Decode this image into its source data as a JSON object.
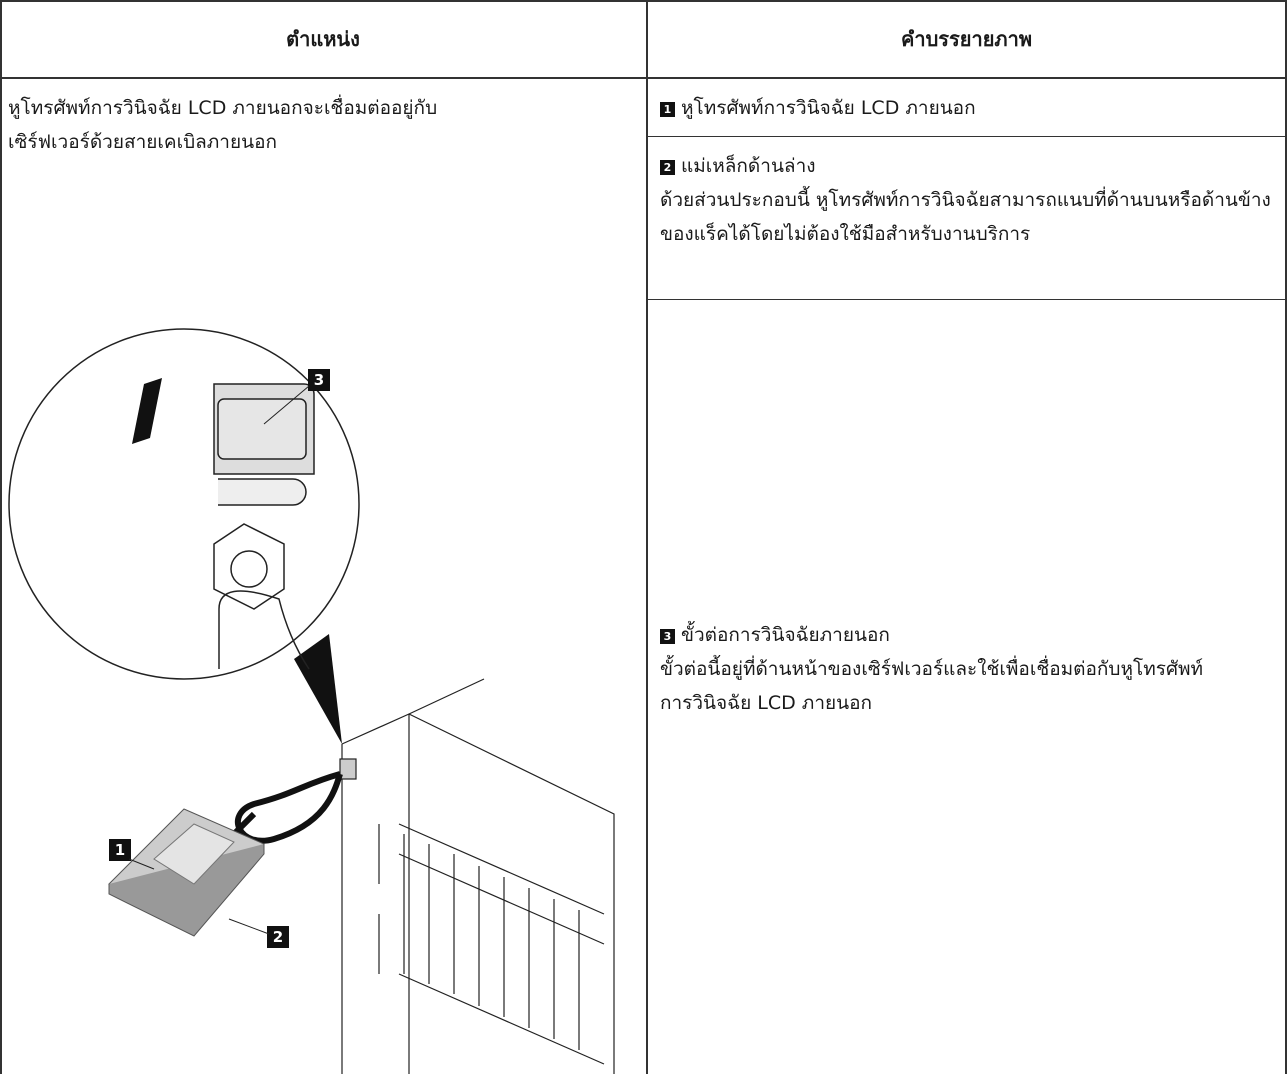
{
  "table": {
    "headers": [
      "ตำแหน่ง",
      "คำบรรยายภาพ"
    ],
    "location_text": "หูโทรศัพท์การวินิจฉัย LCD ภายนอกจะเชื่อมต่ออยู่กับเซิร์ฟเวอร์ด้วยสายเคเบิลภายนอก",
    "illustration_callouts": [
      "1",
      "2",
      "3"
    ],
    "rows": [
      {
        "callout": "1",
        "title": "หูโทรศัพท์การวินิจฉัย LCD ภายนอก"
      },
      {
        "callout": "2",
        "title": "แม่เหล็กด้านล่าง",
        "description": "ด้วยส่วนประกอบนี้ หูโทรศัพท์การวินิจฉัยสามารถแนบที่ด้านบนหรือด้านข้างของแร็คได้โดยไม่ต้องใช้มือสำหรับงานบริการ"
      },
      {
        "callout": "3",
        "title": "ขั้วต่อการวินิจฉัยภายนอก",
        "description": "ขั้วต่อนี้อยู่ที่ด้านหน้าของเซิร์ฟเวอร์และใช้เพื่อเชื่อมต่อกับหูโทรศัพท์การวินิจฉัย LCD ภายนอก"
      }
    ]
  }
}
